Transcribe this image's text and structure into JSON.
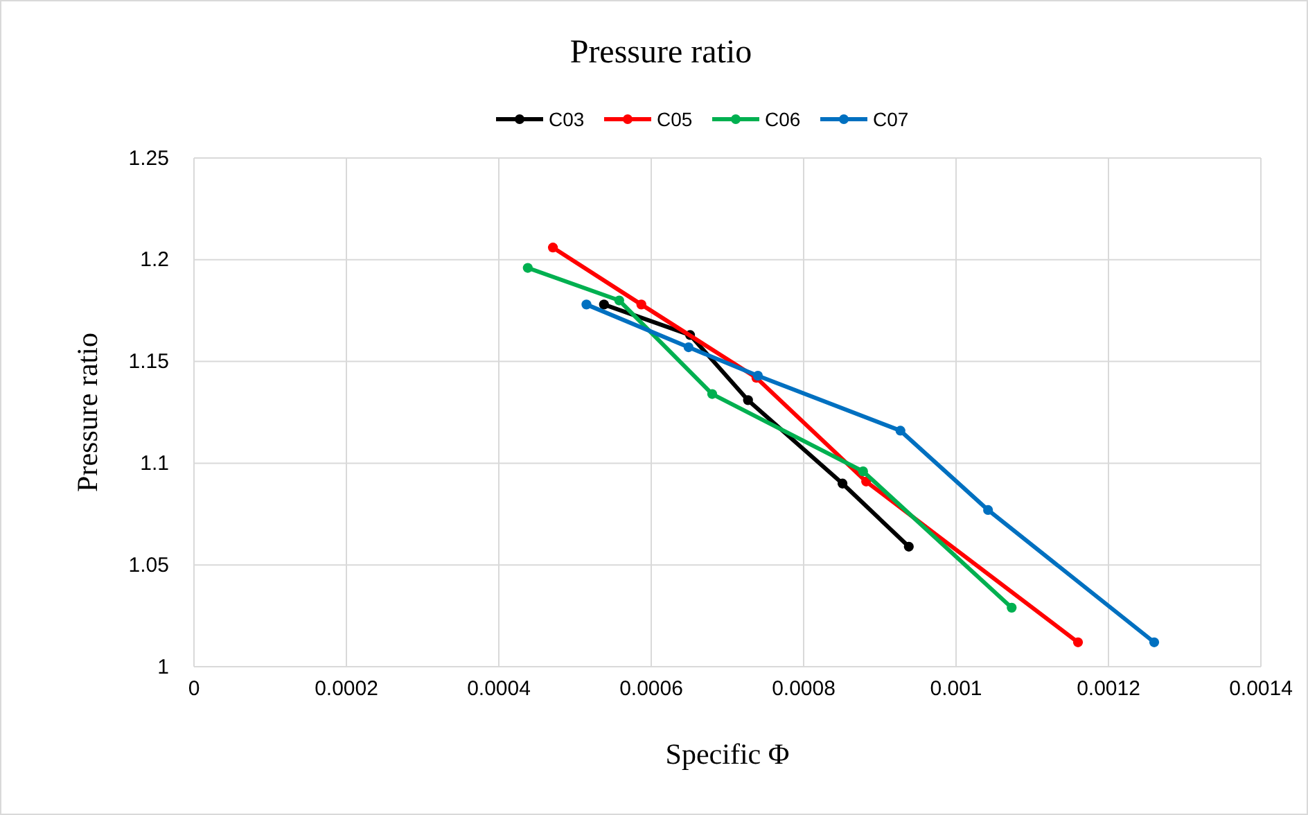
{
  "chart_data": {
    "type": "line",
    "title": "Pressure ratio",
    "xlabel": "Specific Φ",
    "ylabel": "Pressure ratio",
    "xlim": [
      0,
      0.0014
    ],
    "xticks": [
      0,
      0.0002,
      0.0004,
      0.0006,
      0.0008,
      0.001,
      0.0012,
      0.0014
    ],
    "ylim": [
      1,
      1.25
    ],
    "yticks": [
      1,
      1.05,
      1.1,
      1.15,
      1.2,
      1.25
    ],
    "grid": true,
    "legend": "top",
    "marker": "circle",
    "line_style": "solid",
    "series": [
      {
        "name": "C03",
        "color": "#000000",
        "x": [
          0.000538,
          0.000651,
          0.000727,
          0.000851,
          0.000938
        ],
        "values": [
          1.178,
          1.163,
          1.131,
          1.09,
          1.059
        ]
      },
      {
        "name": "C05",
        "color": "#ff0000",
        "x": [
          0.000471,
          0.000587,
          0.000738,
          0.000882,
          0.00116
        ],
        "values": [
          1.206,
          1.178,
          1.142,
          1.091,
          1.012
        ]
      },
      {
        "name": "C06",
        "color": "#00b050",
        "x": [
          0.000438,
          0.000558,
          0.00068,
          0.000878,
          0.001073
        ],
        "values": [
          1.196,
          1.18,
          1.134,
          1.096,
          1.029
        ]
      },
      {
        "name": "C07",
        "color": "#0070c0",
        "x": [
          0.000515,
          0.000649,
          0.00074,
          0.000927,
          0.001042,
          0.00126
        ],
        "values": [
          1.178,
          1.157,
          1.143,
          1.116,
          1.077,
          1.012
        ]
      }
    ]
  }
}
